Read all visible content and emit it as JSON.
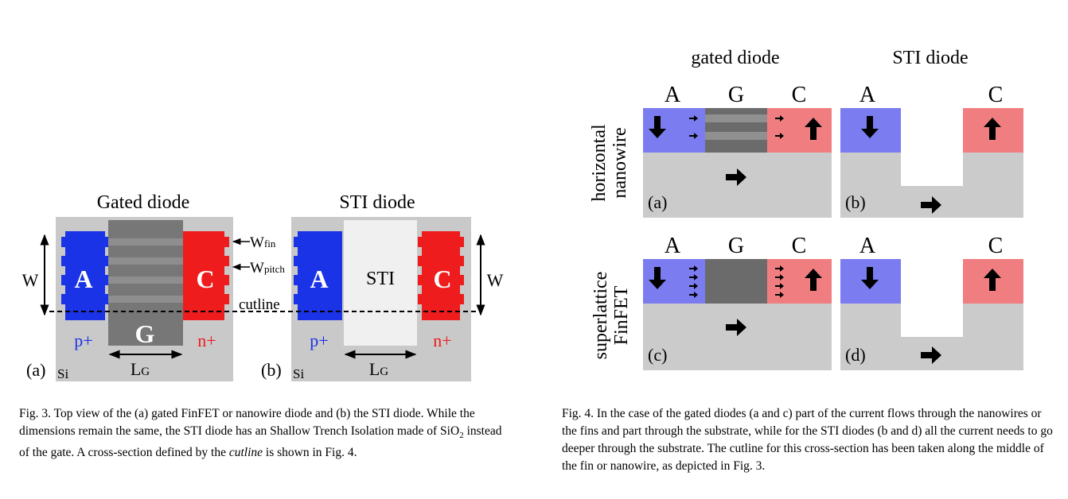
{
  "fig3": {
    "title_a": "Gated diode",
    "title_b": "STI diode",
    "anode": "A",
    "cathode": "C",
    "gate": "G",
    "sti": "STI",
    "p_plus": "p+",
    "n_plus": "n+",
    "si": "Si",
    "label_a": "(a)",
    "label_b": "(b)",
    "w": "W",
    "lg_main": "L",
    "lg_sub": "G",
    "wfin_main": "W",
    "wfin_sub": "fin",
    "wpitch_main": "W",
    "wpitch_sub": "pitch",
    "cutline": "cutline",
    "colors": {
      "anode": "#1a33e6",
      "cathode": "#ee1c1c",
      "gate": "#777777",
      "sti": "#f0f0f0",
      "si": "#c9c9c9"
    }
  },
  "fig4": {
    "col_gated": "gated diode",
    "col_sti": "STI diode",
    "row1_l1": "horizontal",
    "row1_l2": "nanowire",
    "row2_l1": "superlattice",
    "row2_l2": "FinFET",
    "A": "A",
    "G": "G",
    "C": "C",
    "a": "(a)",
    "b": "(b)",
    "c": "(c)",
    "d": "(d)",
    "colors": {
      "anode": "#7b7cf0",
      "cathode": "#f07e80",
      "gate": "#6b6b6b",
      "substrate": "#cbcbcb"
    }
  },
  "caption3": {
    "p1": "Fig. 3.   Top view of the (a) gated FinFET or nanowire diode and (b) the STI diode. While the dimensions remain the same, the STI diode has an Shallow Trench Isolation made of SiO",
    "sub": "2",
    "p2": " instead of the gate. A cross-section defined by the ",
    "em": "cutline",
    "p3": " is shown in Fig. 4."
  },
  "caption4": "Fig. 4.   In the case of the gated diodes (a and c) part of the current flows through the nanowires or the fins and part through the substrate, while for the STI diodes (b and d) all the current needs to go deeper through the substrate. The cutline for this cross-section has been taken along the middle of the fin or nanowire, as depicted in Fig. 3."
}
